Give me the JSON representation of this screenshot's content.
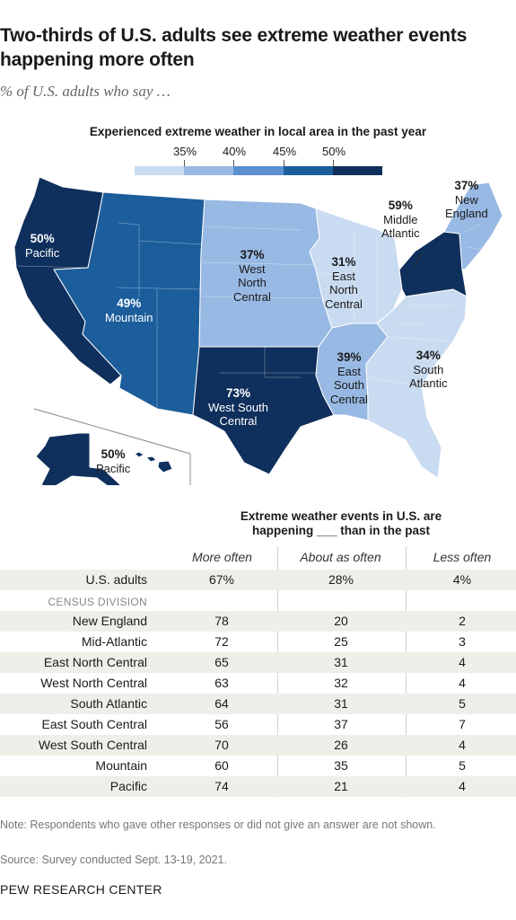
{
  "title": "Two-thirds of U.S. adults see extreme weather events happening more often",
  "subtitle": "% of U.S. adults who say …",
  "legend": {
    "title": "Experienced extreme weather in local area in the past year",
    "ticks": [
      "35%",
      "40%",
      "45%",
      "50%"
    ],
    "colors": [
      "#c9dbf0",
      "#98b9e3",
      "#5b8fcf",
      "#1c5e9c",
      "#0f2f5c"
    ]
  },
  "map": {
    "regions": [
      {
        "key": "pacific",
        "value": "50%",
        "name": "Pacific",
        "color": "#0f2f5c"
      },
      {
        "key": "mountain",
        "value": "49%",
        "name": "Mountain",
        "color": "#1c5e9c"
      },
      {
        "key": "wnc",
        "value": "37%",
        "name_lines": [
          "West",
          "North",
          "Central"
        ],
        "color": "#98b9e3"
      },
      {
        "key": "enc",
        "value": "31%",
        "name_lines": [
          "East",
          "North",
          "Central"
        ],
        "color": "#c9dbf0"
      },
      {
        "key": "ma",
        "value": "59%",
        "name_lines": [
          "Middle",
          "Atlantic"
        ],
        "color": "#0f2f5c"
      },
      {
        "key": "ne",
        "value": "37%",
        "name_lines": [
          "New",
          "England"
        ],
        "color": "#98b9e3"
      },
      {
        "key": "esc",
        "value": "39%",
        "name_lines": [
          "East",
          "South",
          "Central"
        ],
        "color": "#98b9e3"
      },
      {
        "key": "sa",
        "value": "34%",
        "name_lines": [
          "South",
          "Atlantic"
        ],
        "color": "#c9dbf0"
      },
      {
        "key": "wsc",
        "value": "73%",
        "name_lines": [
          "West South",
          "Central"
        ],
        "color": "#0f2f5c"
      },
      {
        "key": "pac2",
        "value": "50%",
        "name": "Pacific",
        "color": "#0f2f5c"
      }
    ]
  },
  "table": {
    "heading_lines": [
      "Extreme weather events in U.S. are",
      "happening ___ than in the past"
    ],
    "columns": [
      "More often",
      "About as often",
      "Less often"
    ],
    "section_label": "CENSUS DIVISION",
    "total": {
      "label": "U.S. adults",
      "values": [
        "67%",
        "28%",
        "4%"
      ]
    },
    "rows": [
      {
        "label": "New England",
        "values": [
          "78",
          "20",
          "2"
        ]
      },
      {
        "label": "Mid-Atlantic",
        "values": [
          "72",
          "25",
          "3"
        ]
      },
      {
        "label": "East North Central",
        "values": [
          "65",
          "31",
          "4"
        ]
      },
      {
        "label": "West North Central",
        "values": [
          "63",
          "32",
          "4"
        ]
      },
      {
        "label": "South Atlantic",
        "values": [
          "64",
          "31",
          "5"
        ]
      },
      {
        "label": "East South Central",
        "values": [
          "56",
          "37",
          "7"
        ]
      },
      {
        "label": "West South Central",
        "values": [
          "70",
          "26",
          "4"
        ]
      },
      {
        "label": "Mountain",
        "values": [
          "60",
          "35",
          "5"
        ]
      },
      {
        "label": "Pacific",
        "values": [
          "74",
          "21",
          "4"
        ]
      }
    ]
  },
  "note": "Note: Respondents who gave other responses or did not give an answer are not shown.",
  "source": "Source: Survey conducted Sept. 13-19, 2021.",
  "brand": "PEW RESEARCH CENTER"
}
